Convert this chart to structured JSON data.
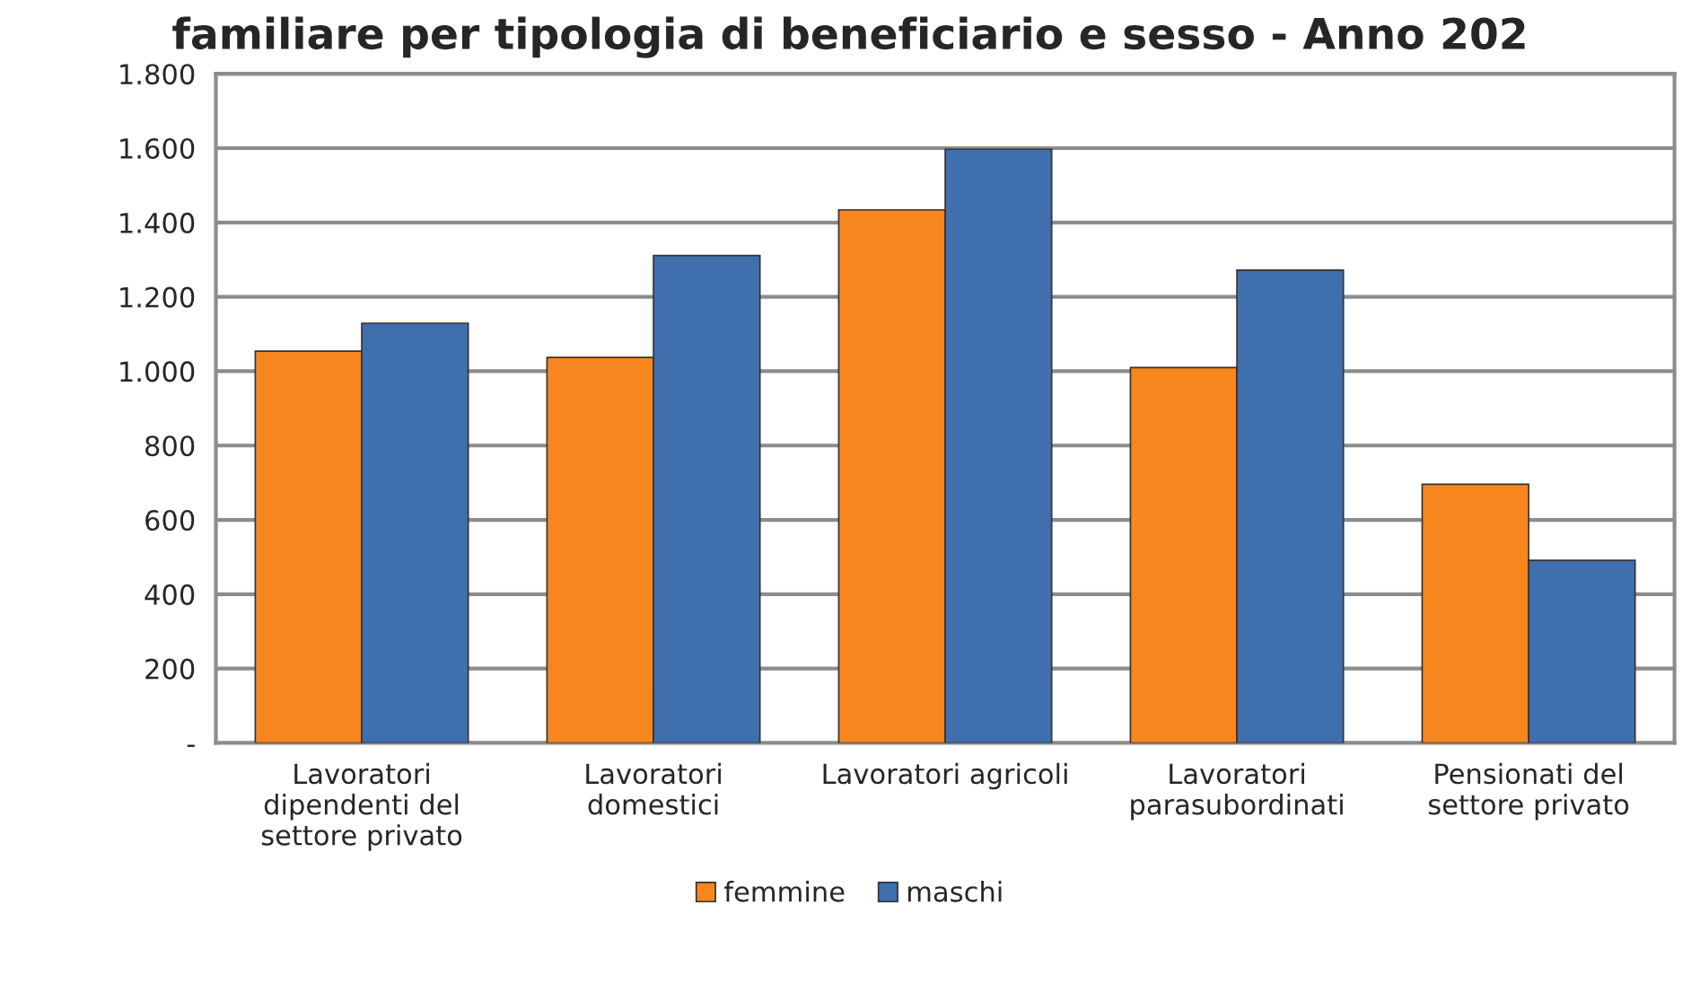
{
  "chart_data": {
    "type": "bar",
    "title": "familiare per tipologia di beneficiario e sesso - Anno 202",
    "categories": [
      "Lavoratori\ndipendenti del\nsettore privato",
      "Lavoratori\ndomestici",
      "Lavoratori agricoli",
      "Lavoratori\nparasubordinati",
      "Pensionati del\nsettore privato"
    ],
    "series": [
      {
        "name": "femmine",
        "color": "#f7861f",
        "values": [
          1054,
          1037,
          1434,
          1010,
          696
        ]
      },
      {
        "name": "maschi",
        "color": "#3f6fad",
        "values": [
          1129,
          1311,
          1597,
          1272,
          491
        ]
      }
    ],
    "ylim": [
      0,
      1800
    ],
    "yticks": [
      {
        "value": 0,
        "label": "-"
      },
      {
        "value": 200,
        "label": "200"
      },
      {
        "value": 400,
        "label": "400"
      },
      {
        "value": 600,
        "label": "600"
      },
      {
        "value": 800,
        "label": "800"
      },
      {
        "value": 1000,
        "label": "1.000"
      },
      {
        "value": 1200,
        "label": "1.200"
      },
      {
        "value": 1400,
        "label": "1.400"
      },
      {
        "value": 1600,
        "label": "1.600"
      },
      {
        "value": 1800,
        "label": "1.800"
      }
    ],
    "grid": "y",
    "legend": "bottom"
  }
}
